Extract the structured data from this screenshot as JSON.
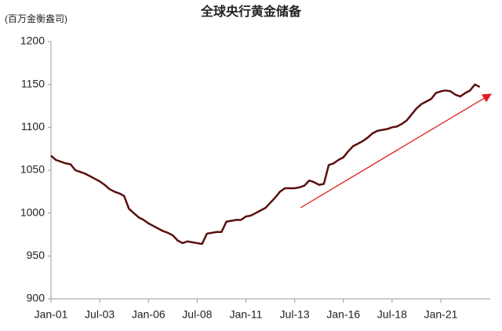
{
  "chart_data": {
    "type": "line",
    "title": "全球央行黄金储备",
    "y_label": "(百万金衡盎司)",
    "categories": [
      "Jan-01",
      null,
      null,
      null,
      null,
      null,
      null,
      null,
      null,
      null,
      "Jul-03",
      null,
      null,
      null,
      null,
      null,
      null,
      null,
      null,
      null,
      "Jan-06",
      null,
      null,
      null,
      null,
      null,
      null,
      null,
      null,
      null,
      "Jul-08",
      null,
      null,
      null,
      null,
      null,
      null,
      null,
      null,
      null,
      "Jan-11",
      null,
      null,
      null,
      null,
      null,
      null,
      null,
      null,
      null,
      "Jul-13",
      null,
      null,
      null,
      null,
      null,
      null,
      null,
      null,
      null,
      "Jan-16",
      null,
      null,
      null,
      null,
      null,
      null,
      null,
      null,
      null,
      "Jul-18",
      null,
      null,
      null,
      null,
      null,
      null,
      null,
      null,
      null,
      "Jan-21",
      null,
      null,
      null,
      null,
      null,
      null,
      null,
      null
    ],
    "values": [
      1067,
      1062,
      1060,
      1058,
      1057,
      1050,
      1048,
      1046,
      1043,
      1040,
      1037,
      1033,
      1028,
      1025,
      1023,
      1020,
      1005,
      1000,
      995,
      992,
      988,
      985,
      982,
      979,
      977,
      974,
      968,
      965,
      967,
      966,
      965,
      964,
      976,
      977,
      978,
      978,
      990,
      991,
      992,
      992,
      996,
      997,
      1000,
      1003,
      1006,
      1012,
      1018,
      1025,
      1029,
      1029,
      1029,
      1030,
      1032,
      1038,
      1036,
      1033,
      1034,
      1056,
      1058,
      1062,
      1065,
      1072,
      1078,
      1081,
      1084,
      1088,
      1093,
      1096,
      1097,
      1098,
      1100,
      1101,
      1104,
      1108,
      1115,
      1122,
      1127,
      1130,
      1133,
      1140,
      1142,
      1143,
      1142,
      1138,
      1136,
      1140,
      1143,
      1150,
      1147
    ],
    "color": "#5a0f0f",
    "ylim": [
      900,
      1200
    ],
    "yticks": [
      900,
      950,
      1000,
      1050,
      1100,
      1150,
      1200
    ],
    "grid": false
  }
}
